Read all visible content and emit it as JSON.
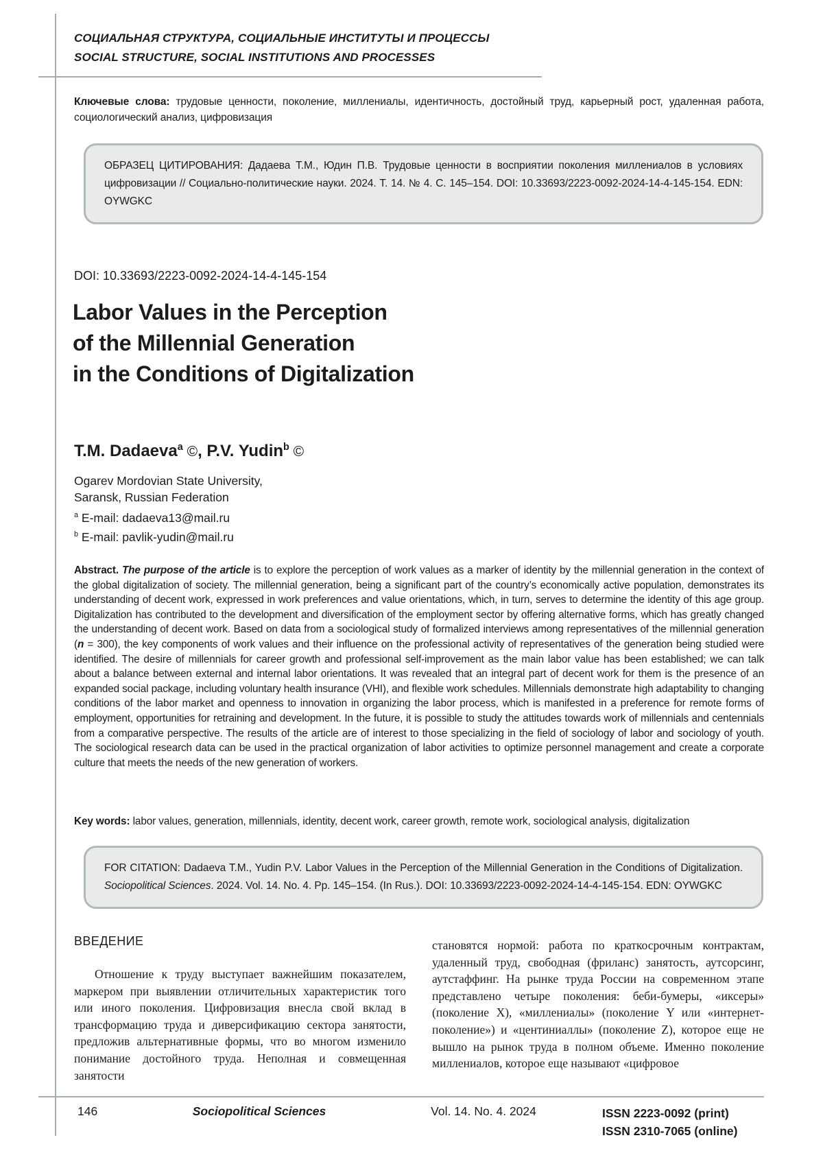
{
  "header": {
    "rubric_ru": "СОЦИАЛЬНАЯ СТРУКТУРА, СОЦИАЛЬНЫЕ ИНСТИТУТЫ И ПРОЦЕССЫ",
    "rubric_en": "SOCIAL STRUCTURE, SOCIAL INSTITUTIONS AND PROCESSES"
  },
  "keywords_ru": {
    "label": "Ключевые слова: ",
    "text": "трудовые ценности, поколение, миллениалы, идентичность, достойный труд, карьерный рост, удаленная работа, социологический анализ, цифровизация"
  },
  "citation_ru": {
    "text": "ОБРАЗЕЦ ЦИТИРОВАНИЯ: Дадаева Т.М., Юдин П.В. Трудовые ценности в восприятии поколения миллениалов в условиях цифровизации // Социально-политические науки. 2024. Т. 14. № 4. С. 145–154. DOI: 10.33693/2223-0092-2024-14-4-145-154. EDN: OYWGKC"
  },
  "doi": "DOI: 10.33693/2223-0092-2024-14-4-145-154",
  "title": {
    "lines": [
      "Labor Values in the Perception",
      "of the Millennial Generation",
      "in the Conditions of Digitalization"
    ]
  },
  "authors_line": {
    "a1_name": "T.M. Dadaeva",
    "a1_sup": "a",
    "a1_mark": " ©",
    "separator": ", ",
    "a2_name": "P.V. Yudin",
    "a2_sup": "b",
    "a2_mark": " ©"
  },
  "affiliation": {
    "lines": [
      "Ogarev Mordovian State University,",
      "Saransk, Russian Federation"
    ]
  },
  "emails": [
    {
      "sup": "a",
      "text": " E-mail: dadaeva13@mail.ru"
    },
    {
      "sup": "b",
      "text": " E-mail: pavlik-yudin@mail.ru"
    }
  ],
  "abstract": {
    "label": "Abstract. ",
    "lead_italic": "The purpose of the article",
    "body1": " is to explore the perception of work values as a marker of identity by the millennial generation in the context of the global digitalization of society. The millennial generation, being a significant part of the country’s economically active population, demonstrates its understanding of decent work, expressed in work preferences and value orientations, which, in turn, serves to determine the identity of this age group. Digitalization has contributed to the development and diversification of the employment sector by offering alternative forms, which has greatly changed the understanding of decent work. Based on data from a sociological study of formalized interviews among representatives of the millennial generation (",
    "n_var": "n",
    "body2": " = 300), the key components of work values and their influence on the professional activity of representatives of the generation being studied were identified. The desire of millennials for career growth and professional self-improvement as the main labor value has been established; we can talk about a balance between external and internal labor orientations. It was revealed that an integral part of decent work for them is the presence of an expanded social package, including voluntary health insurance (VHI), and flexible work schedules. Millennials demonstrate high adaptability to changing conditions of the labor market and openness to innovation in organizing the labor process, which is manifested in a preference for remote forms of employment, opportunities for retraining and development. In the future, it is possible to study the attitudes towards work of millennials and centennials from a comparative perspective. The results of the article are of interest to those specializing in the field of sociology of labor and sociology of youth. The sociological research data can be used in the practical organization of labor activities to optimize personnel management and create a corporate culture that meets the needs of the new generation of workers."
  },
  "key_words_en": {
    "label": "Key words: ",
    "text": "labor values, generation, millennials, identity, decent work, career growth, remote work, sociological analysis, digitalization"
  },
  "for_citation": {
    "part1": "FOR CITATION: Dadaeva T.M., Yudin P.V. Labor Values in the Perception of the Millennial Generation in the Conditions of Digitalization. ",
    "journal_italic": "Sociopolitical Sciences",
    "part2": ". 2024. Vol. 14. No. 4. Pp. 145–154. (In Rus.). DOI: 10.33693/2223-0092-2024-14-4-145-154. EDN: OYWGKC"
  },
  "intro": {
    "heading": "ВВЕДЕНИЕ",
    "col_left": "Отношение к труду выступает важнейшим показателем, маркером при выявлении отличительных характеристик того или иного поколения. Цифровизация внесла свой вклад в трансформацию труда и диверсификацию сектора занятости, предложив альтернативные формы, что во многом изменило понимание достойного труда. Неполная и совмещенная занятости",
    "col_right": "становятся нормой: работа по краткосрочным контрактам, удаленный труд, свободная (фриланс) занятость, аутсорсинг, аутстаффинг. На рынке труда России на современном этапе представлено четыре поколения: беби-бумеры, «иксеры» (поколение X), «миллениалы» (поколение Y или «интернет-поколение») и «центиниаллы» (поколение Z), которое еще не вышло на рынок труда в полном объеме. Именно поколение миллениалов, которое еще называют «цифровое"
  },
  "footer": {
    "page_number": "146",
    "journal": "Sociopolitical Sciences",
    "issue": "Vol. 14. No. 4. 2024",
    "issn_print": "ISSN 2223-0092 (print)",
    "issn_online": "ISSN 2310-7065 (online)"
  },
  "colors": {
    "rule_gray": "#a5afac",
    "box_background": "#e9ebea",
    "box_border": "#b2bab8",
    "text": "#1c1c1a"
  }
}
